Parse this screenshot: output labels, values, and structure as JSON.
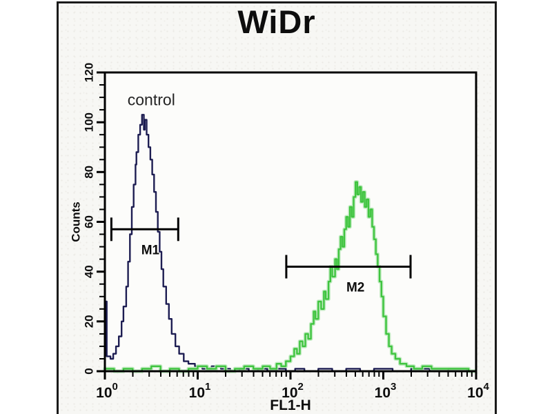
{
  "title": "WiDr",
  "colors": {
    "axis": "#000000",
    "frame": "#1a1a1a",
    "control_trace": "#1d1d52",
    "sample_trace": "#3fc43f",
    "sample_halo": "#b7e7b7",
    "plot_background": "#fcfcfa",
    "text": "#0d0d0d"
  },
  "chart_data": {
    "type": "line",
    "subtype": "flow-cytometry-histogram",
    "title": "WiDr",
    "xlabel": "FL1-H",
    "ylabel": "Counts",
    "x_scale": "log10",
    "x_tick_base": "10",
    "xlim_exponents": [
      0,
      4
    ],
    "ylim": [
      0,
      120
    ],
    "y_major_ticks": [
      0,
      20,
      40,
      60,
      80,
      100,
      120
    ],
    "y_minor_step": 5,
    "x_decade_ticks": [
      0,
      1,
      2,
      3,
      4
    ],
    "grid": false,
    "legend": false,
    "annotations": [
      {
        "text": "control",
        "log_x": 0.5,
        "counts": 109
      }
    ],
    "markers": [
      {
        "label": "M1",
        "counts": 57,
        "log_x_start": 0.07,
        "log_x_end": 0.79,
        "label_log_x": 0.49
      },
      {
        "label": "M2",
        "counts": 42,
        "log_x_start": 1.955,
        "log_x_end": 3.294,
        "label_log_x": 2.7
      }
    ],
    "series": [
      {
        "name": "control",
        "color": "#1d1d52",
        "halo": null,
        "peak": {
          "log_x": 0.4,
          "counts": 103
        },
        "points": [
          [
            0.0,
            28
          ],
          [
            0.02,
            6
          ],
          [
            0.06,
            5
          ],
          [
            0.09,
            7
          ],
          [
            0.12,
            10
          ],
          [
            0.15,
            14
          ],
          [
            0.18,
            20
          ],
          [
            0.2,
            26
          ],
          [
            0.23,
            34
          ],
          [
            0.25,
            44
          ],
          [
            0.27,
            55
          ],
          [
            0.29,
            66
          ],
          [
            0.31,
            75
          ],
          [
            0.33,
            83
          ],
          [
            0.34,
            88
          ],
          [
            0.36,
            95
          ],
          [
            0.38,
            99
          ],
          [
            0.4,
            103
          ],
          [
            0.42,
            97
          ],
          [
            0.43,
            101
          ],
          [
            0.45,
            95
          ],
          [
            0.47,
            90
          ],
          [
            0.49,
            85
          ],
          [
            0.51,
            79
          ],
          [
            0.53,
            72
          ],
          [
            0.55,
            64
          ],
          [
            0.57,
            56
          ],
          [
            0.59,
            48
          ],
          [
            0.61,
            41
          ],
          [
            0.63,
            34
          ],
          [
            0.66,
            27
          ],
          [
            0.69,
            21
          ],
          [
            0.72,
            15
          ],
          [
            0.76,
            10
          ],
          [
            0.8,
            7
          ],
          [
            0.85,
            4
          ],
          [
            0.9,
            3
          ],
          [
            0.97,
            2
          ],
          [
            1.05,
            1
          ],
          [
            1.15,
            2
          ],
          [
            1.25,
            1
          ],
          [
            1.35,
            0
          ],
          [
            1.45,
            1
          ],
          [
            1.55,
            0
          ],
          [
            1.65,
            1
          ],
          [
            1.75,
            0
          ],
          [
            1.85,
            1
          ],
          [
            1.95,
            0
          ],
          [
            2.05,
            1
          ],
          [
            2.15,
            0
          ],
          [
            2.3,
            1
          ],
          [
            2.45,
            0
          ],
          [
            2.6,
            1
          ],
          [
            2.75,
            0
          ],
          [
            2.9,
            1
          ],
          [
            3.1,
            0
          ],
          [
            3.3,
            1
          ],
          [
            3.5,
            0
          ],
          [
            3.7,
            1
          ],
          [
            3.9,
            0
          ],
          [
            4.0,
            0
          ]
        ]
      },
      {
        "name": "sample",
        "color": "#3fc43f",
        "halo": "#b7e7b7",
        "peak": {
          "log_x": 2.7,
          "counts": 76
        },
        "points": [
          [
            0.0,
            1
          ],
          [
            0.1,
            0
          ],
          [
            0.2,
            1
          ],
          [
            0.3,
            0
          ],
          [
            0.4,
            1
          ],
          [
            0.5,
            2
          ],
          [
            0.6,
            0
          ],
          [
            0.7,
            1
          ],
          [
            0.8,
            0
          ],
          [
            0.9,
            1
          ],
          [
            1.0,
            2
          ],
          [
            1.1,
            1
          ],
          [
            1.2,
            2
          ],
          [
            1.3,
            0
          ],
          [
            1.4,
            1
          ],
          [
            1.5,
            2
          ],
          [
            1.6,
            1
          ],
          [
            1.7,
            2
          ],
          [
            1.78,
            1
          ],
          [
            1.85,
            3
          ],
          [
            1.9,
            2
          ],
          [
            1.95,
            4
          ],
          [
            2.0,
            6
          ],
          [
            2.04,
            9
          ],
          [
            2.07,
            7
          ],
          [
            2.1,
            12
          ],
          [
            2.13,
            10
          ],
          [
            2.16,
            15
          ],
          [
            2.19,
            13
          ],
          [
            2.22,
            19
          ],
          [
            2.25,
            24
          ],
          [
            2.27,
            21
          ],
          [
            2.3,
            28
          ],
          [
            2.33,
            25
          ],
          [
            2.36,
            32
          ],
          [
            2.38,
            29
          ],
          [
            2.41,
            36
          ],
          [
            2.43,
            42
          ],
          [
            2.45,
            38
          ],
          [
            2.48,
            45
          ],
          [
            2.5,
            41
          ],
          [
            2.52,
            49
          ],
          [
            2.54,
            54
          ],
          [
            2.56,
            50
          ],
          [
            2.58,
            57
          ],
          [
            2.6,
            62
          ],
          [
            2.62,
            58
          ],
          [
            2.64,
            66
          ],
          [
            2.66,
            62
          ],
          [
            2.68,
            70
          ],
          [
            2.7,
            76
          ],
          [
            2.72,
            71
          ],
          [
            2.74,
            74
          ],
          [
            2.76,
            68
          ],
          [
            2.78,
            72
          ],
          [
            2.8,
            66
          ],
          [
            2.82,
            69
          ],
          [
            2.84,
            62
          ],
          [
            2.86,
            65
          ],
          [
            2.88,
            58
          ],
          [
            2.9,
            53
          ],
          [
            2.92,
            47
          ],
          [
            2.94,
            42
          ],
          [
            2.96,
            36
          ],
          [
            2.98,
            30
          ],
          [
            3.0,
            22
          ],
          [
            3.03,
            15
          ],
          [
            3.06,
            10
          ],
          [
            3.09,
            7
          ],
          [
            3.13,
            5
          ],
          [
            3.18,
            3
          ],
          [
            3.25,
            2
          ],
          [
            3.33,
            1
          ],
          [
            3.42,
            2
          ],
          [
            3.52,
            1
          ],
          [
            3.62,
            1
          ],
          [
            3.72,
            1
          ],
          [
            3.82,
            1
          ],
          [
            3.92,
            0
          ],
          [
            4.0,
            0
          ]
        ]
      }
    ]
  }
}
